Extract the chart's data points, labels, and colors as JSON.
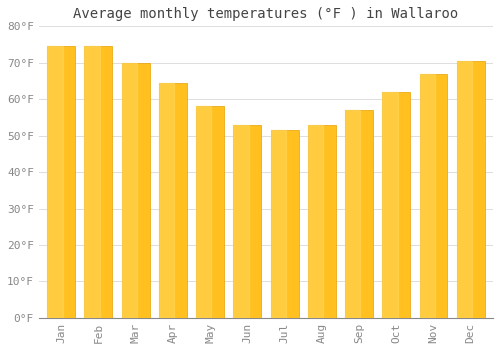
{
  "title": "Average monthly temperatures (°F ) in Wallaroo",
  "months": [
    "Jan",
    "Feb",
    "Mar",
    "Apr",
    "May",
    "Jun",
    "Jul",
    "Aug",
    "Sep",
    "Oct",
    "Nov",
    "Dec"
  ],
  "values": [
    74.5,
    74.5,
    70.0,
    64.5,
    58.0,
    53.0,
    51.5,
    53.0,
    57.0,
    62.0,
    67.0,
    70.5
  ],
  "bar_color_face": "#FFC020",
  "bar_color_edge": "#E8A000",
  "background_color": "#FFFFFF",
  "grid_color": "#DDDDDD",
  "ylim": [
    0,
    80
  ],
  "yticks": [
    0,
    10,
    20,
    30,
    40,
    50,
    60,
    70,
    80
  ],
  "ytick_labels": [
    "0°F",
    "10°F",
    "20°F",
    "30°F",
    "40°F",
    "50°F",
    "60°F",
    "70°F",
    "80°F"
  ],
  "title_fontsize": 10,
  "tick_fontsize": 8,
  "title_color": "#444444",
  "tick_color": "#888888",
  "font_family": "monospace",
  "bar_width": 0.75
}
